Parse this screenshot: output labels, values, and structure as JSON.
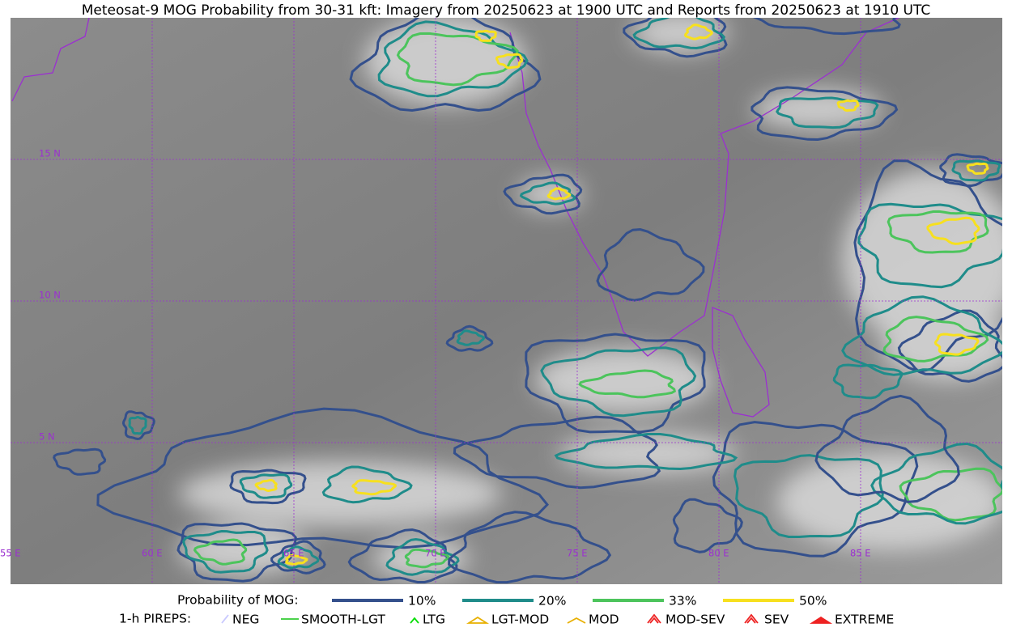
{
  "title": "Meteosat-9 MOG Probability from 30-31 kft: Imagery from 20250623 at 1900 UTC and Reports from 20250623 at 1910 UTC",
  "grid": {
    "lat_labels": [
      "15 N",
      "10 N",
      "5 N"
    ],
    "lon_labels": [
      "55 E",
      "60 E",
      "65 E",
      "70 E",
      "75 E",
      "80 E",
      "85 E"
    ]
  },
  "legend": {
    "mog_label": "Probability of MOG:",
    "mog_levels": [
      {
        "label": "10%",
        "color": "#34508c"
      },
      {
        "label": "20%",
        "color": "#1f8c8a"
      },
      {
        "label": "33%",
        "color": "#4cc45c"
      },
      {
        "label": "50%",
        "color": "#f7e01e"
      }
    ],
    "pirep_label": "1-h PIREPS:",
    "pireps": [
      "NEG",
      "SMOOTH-LGT",
      "LTG",
      "LGT-MOD",
      "MOD",
      "MOD-SEV",
      "SEV",
      "EXTREME"
    ]
  }
}
